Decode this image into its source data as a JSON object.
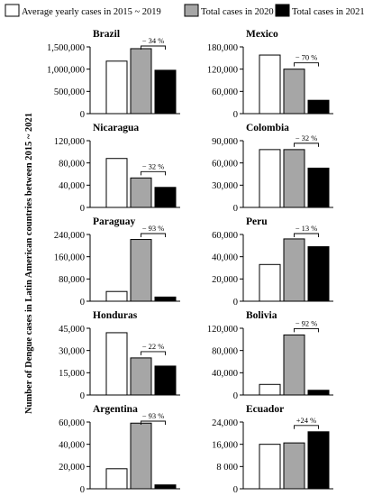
{
  "legend": [
    {
      "label": "Average yearly cases in 2015 ~ 2019",
      "color": "#ffffff"
    },
    {
      "label": "Total cases in 2020",
      "color": "#a6a6a6"
    },
    {
      "label": "Total cases in 2021",
      "color": "#000000"
    }
  ],
  "ylabel": "Number of Dengue cases in Latin American countries between 2015 ~ 2021",
  "chart_data": [
    {
      "type": "bar",
      "title": "Brazil",
      "categories": [
        "Average yearly cases in 2015 ~ 2019",
        "Total cases in 2020",
        "Total cases in 2021"
      ],
      "values": [
        1180000,
        1460000,
        975000
      ],
      "ylim": [
        0,
        1500000
      ],
      "ticks": [
        0,
        500000,
        1000000,
        1500000
      ],
      "tick_labels": [
        "0",
        "500,000",
        "1,000,000",
        "1,500,000"
      ],
      "annotation": {
        "text": "− 34 %",
        "from": 1,
        "to": 2
      }
    },
    {
      "type": "bar",
      "title": "Mexico",
      "categories": [
        "Average yearly cases in 2015 ~ 2019",
        "Total cases in 2020",
        "Total cases in 2021"
      ],
      "values": [
        158000,
        120000,
        36000
      ],
      "ylim": [
        0,
        180000
      ],
      "ticks": [
        0,
        60000,
        120000,
        180000
      ],
      "tick_labels": [
        "0",
        "60,000",
        "120,000",
        "180,000"
      ],
      "annotation": {
        "text": "− 70 %",
        "from": 1,
        "to": 2
      }
    },
    {
      "type": "bar",
      "title": "Nicaragua",
      "categories": [
        "Average yearly cases in 2015 ~ 2019",
        "Total cases in 2020",
        "Total cases in 2021"
      ],
      "values": [
        88000,
        53000,
        36000
      ],
      "ylim": [
        0,
        120000
      ],
      "ticks": [
        0,
        40000,
        80000,
        120000
      ],
      "tick_labels": [
        "0",
        "40,000",
        "80,000",
        "120,000"
      ],
      "annotation": {
        "text": "− 32 %",
        "from": 1,
        "to": 2
      }
    },
    {
      "type": "bar",
      "title": "Colombia",
      "categories": [
        "Average yearly cases in 2015 ~ 2019",
        "Total cases in 2020",
        "Total cases in 2021"
      ],
      "values": [
        78000,
        78000,
        53000
      ],
      "ylim": [
        0,
        90000
      ],
      "ticks": [
        0,
        30000,
        60000,
        90000
      ],
      "tick_labels": [
        "0",
        "30,000",
        "60,000",
        "90,000"
      ],
      "annotation": {
        "text": "− 32 %",
        "from": 1,
        "to": 2
      }
    },
    {
      "type": "bar",
      "title": "Paraguay",
      "categories": [
        "Average yearly cases in 2015 ~ 2019",
        "Total cases in 2020",
        "Total cases in 2021"
      ],
      "values": [
        35000,
        222000,
        15000
      ],
      "ylim": [
        0,
        240000
      ],
      "ticks": [
        0,
        80000,
        160000,
        240000
      ],
      "tick_labels": [
        "0",
        "80,000",
        "160,000",
        "240,000"
      ],
      "annotation": {
        "text": "− 93 %",
        "from": 1,
        "to": 2
      }
    },
    {
      "type": "bar",
      "title": "Peru",
      "categories": [
        "Average yearly cases in 2015 ~ 2019",
        "Total cases in 2020",
        "Total cases in 2021"
      ],
      "values": [
        33000,
        56000,
        49000
      ],
      "ylim": [
        0,
        60000
      ],
      "ticks": [
        0,
        20000,
        40000,
        60000
      ],
      "tick_labels": [
        "0",
        "20,000",
        "40,000",
        "60,000"
      ],
      "annotation": {
        "text": "− 13 %",
        "from": 1,
        "to": 2
      }
    },
    {
      "type": "bar",
      "title": "Honduras",
      "categories": [
        "Average yearly cases in 2015 ~ 2019",
        "Total cases in 2020",
        "Total cases in 2021"
      ],
      "values": [
        42000,
        25000,
        19500
      ],
      "ylim": [
        0,
        45000
      ],
      "ticks": [
        0,
        15000,
        30000,
        45000
      ],
      "tick_labels": [
        "0",
        "15,000",
        "30,000",
        "45,000"
      ],
      "annotation": {
        "text": "− 22 %",
        "from": 1,
        "to": 2
      }
    },
    {
      "type": "bar",
      "title": "Bolivia",
      "categories": [
        "Average yearly cases in 2015 ~ 2019",
        "Total cases in 2020",
        "Total cases in 2021"
      ],
      "values": [
        19000,
        108000,
        8500
      ],
      "ylim": [
        0,
        120000
      ],
      "ticks": [
        0,
        40000,
        80000,
        120000
      ],
      "tick_labels": [
        "0",
        "40,000",
        "80,000",
        "120,000"
      ],
      "annotation": {
        "text": "− 92 %",
        "from": 1,
        "to": 2
      }
    },
    {
      "type": "bar",
      "title": "Argentina",
      "categories": [
        "Average yearly cases in 2015 ~ 2019",
        "Total cases in 2020",
        "Total cases in 2021"
      ],
      "values": [
        18000,
        59000,
        3500
      ],
      "ylim": [
        0,
        60000
      ],
      "ticks": [
        0,
        20000,
        40000,
        60000
      ],
      "tick_labels": [
        "0",
        "20,000",
        "40,000",
        "60,000"
      ],
      "annotation": {
        "text": "− 93 %",
        "from": 1,
        "to": 2
      }
    },
    {
      "type": "bar",
      "title": "Ecuador",
      "categories": [
        "Average yearly cases in 2015 ~ 2019",
        "Total cases in 2020",
        "Total cases in 2021"
      ],
      "values": [
        16000,
        16500,
        20500
      ],
      "ylim": [
        0,
        24000
      ],
      "ticks": [
        0,
        8000,
        16000,
        24000
      ],
      "tick_labels": [
        "0",
        "8 000",
        "16,000",
        "24,000"
      ],
      "annotation": {
        "text": "+24 %",
        "from": 1,
        "to": 2
      }
    }
  ]
}
